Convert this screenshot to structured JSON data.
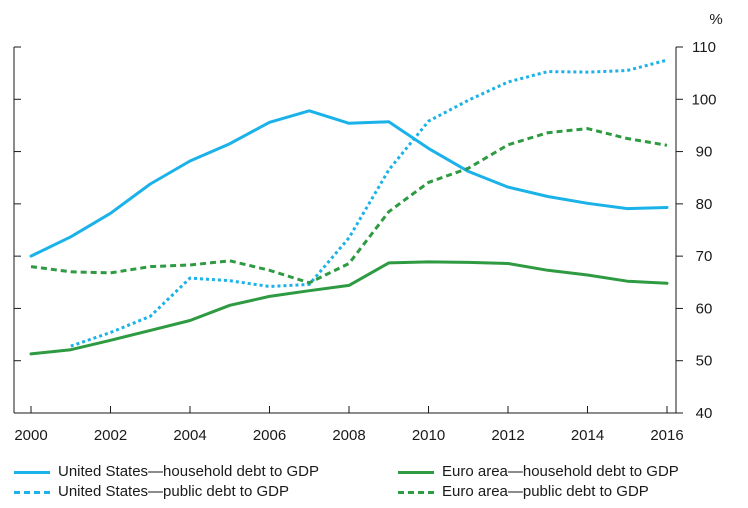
{
  "chart_data": {
    "type": "line",
    "ylabel": "%",
    "xlim": [
      2000,
      2016
    ],
    "ylim": [
      40,
      110
    ],
    "x_ticks": [
      "2000",
      "2002",
      "2004",
      "2006",
      "2008",
      "2010",
      "2012",
      "2014",
      "2016"
    ],
    "y_ticks": [
      "40",
      "50",
      "60",
      "70",
      "80",
      "90",
      "100",
      "110"
    ],
    "grid": false,
    "legend_position": "bottom",
    "series": [
      {
        "name": "United States—household debt to GDP",
        "color": "#1ab2e8",
        "style": "solid",
        "x": [
          2000,
          2001,
          2002,
          2003,
          2004,
          2005,
          2006,
          2007,
          2008,
          2009,
          2010,
          2011,
          2012,
          2013,
          2014,
          2015,
          2016
        ],
        "values": [
          70,
          73.7,
          78.2,
          83.8,
          88.2,
          91.5,
          95.6,
          97.8,
          95.4,
          95.7,
          90.6,
          86.2,
          83.2,
          81.4,
          80.1,
          79.1,
          79.3
        ]
      },
      {
        "name": "United States—public debt to GDP",
        "color": "#1ab2e8",
        "style": "dotted",
        "x": [
          2001,
          2002,
          2003,
          2004,
          2005,
          2006,
          2007,
          2008,
          2009,
          2010,
          2011,
          2012,
          2013,
          2014,
          2015,
          2016
        ],
        "values": [
          52.8,
          55.4,
          58.5,
          65.8,
          65.3,
          64.2,
          64.6,
          73.5,
          86.5,
          95.8,
          99.8,
          103.3,
          105.3,
          105.2,
          105.5,
          107.5
        ]
      },
      {
        "name": "Euro area—household debt to GDP",
        "color": "#2e9a41",
        "style": "solid",
        "x": [
          2000,
          2001,
          2002,
          2003,
          2004,
          2005,
          2006,
          2007,
          2008,
          2009,
          2010,
          2011,
          2012,
          2013,
          2014,
          2015,
          2016
        ],
        "values": [
          51.3,
          52.1,
          53.9,
          55.8,
          57.7,
          60.6,
          62.3,
          63.4,
          64.4,
          68.7,
          68.9,
          68.8,
          68.6,
          67.3,
          66.4,
          65.2,
          64.8
        ]
      },
      {
        "name": "Euro area—public debt to GDP",
        "color": "#2e9a41",
        "style": "dashed",
        "x": [
          2000,
          2001,
          2002,
          2003,
          2004,
          2005,
          2006,
          2007,
          2008,
          2009,
          2010,
          2011,
          2012,
          2013,
          2014,
          2015,
          2016
        ],
        "values": [
          68,
          67,
          66.8,
          68,
          68.3,
          69.1,
          67.3,
          64.9,
          68.6,
          78.5,
          84.1,
          86.8,
          91.3,
          93.6,
          94.4,
          92.5,
          91.2
        ]
      }
    ]
  }
}
